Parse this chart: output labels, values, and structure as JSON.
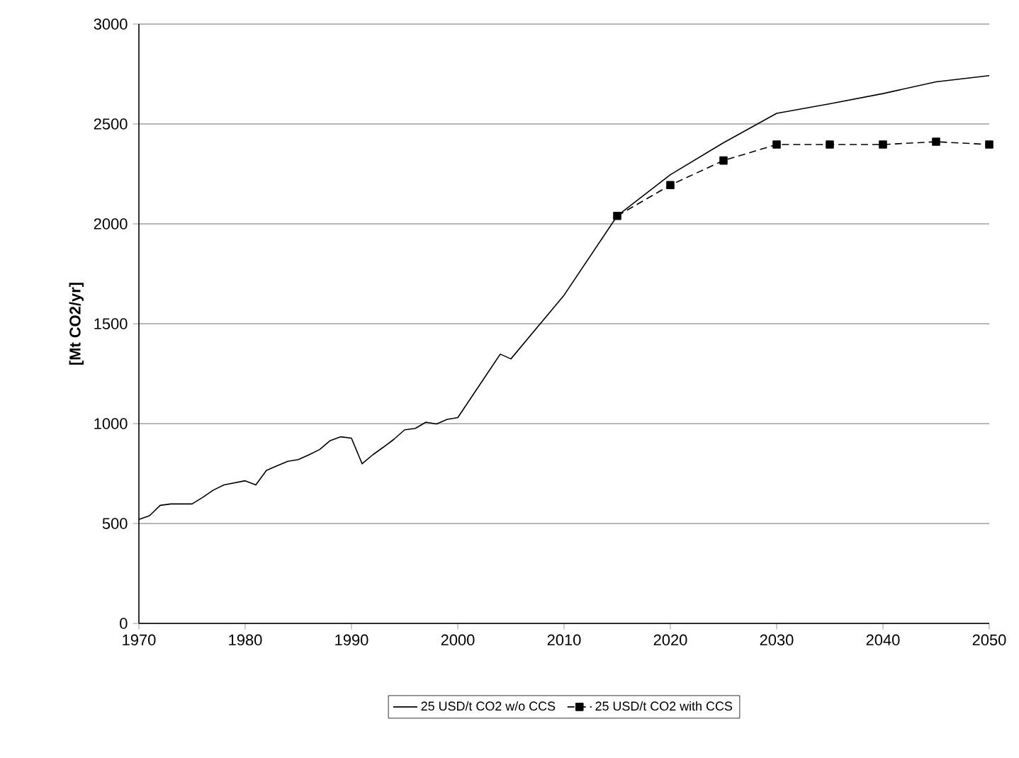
{
  "chart_data": {
    "type": "line",
    "ylabel": "[Mt CO2/yr]",
    "xlim": [
      1970,
      2050
    ],
    "ylim": [
      0,
      3000
    ],
    "xticks": [
      1970,
      1980,
      1990,
      2000,
      2010,
      2020,
      2030,
      2040,
      2050
    ],
    "yticks": [
      0,
      500,
      1000,
      1500,
      2000,
      2500,
      3000
    ],
    "grid": "y",
    "legend": "bottom",
    "series": [
      {
        "name": "25 USD/t CO2 w/o CCS",
        "color": "#000000",
        "marker": "none",
        "line_style": "solid",
        "x": [
          1970,
          1971,
          1972,
          1973,
          1975,
          1976,
          1977,
          1978,
          1980,
          1981,
          1982,
          1983,
          1984,
          1985,
          1986,
          1987,
          1988,
          1989,
          1990,
          1991,
          1992,
          1993,
          1994,
          1995,
          1996,
          1997,
          1998,
          1999,
          2000,
          2004,
          2005,
          2010,
          2015,
          2020,
          2025,
          2030,
          2035,
          2040,
          2045,
          2050
        ],
        "values": [
          520,
          539,
          591,
          598,
          598,
          631,
          667,
          693,
          714,
          693,
          766,
          789,
          811,
          820,
          844,
          870,
          915,
          934,
          927,
          799,
          844,
          882,
          922,
          969,
          976,
          1007,
          998,
          1021,
          1030,
          1348,
          1324,
          1643,
          2040,
          2246,
          2406,
          2553,
          2601,
          2652,
          2711,
          2742
        ]
      },
      {
        "name": "25 USD/t CO2 with CCS",
        "color": "#000000",
        "marker": "square",
        "line_style": "dashed",
        "x": [
          2015,
          2020,
          2025,
          2030,
          2035,
          2040,
          2045,
          2050
        ],
        "values": [
          2040,
          2194,
          2317,
          2397,
          2397,
          2397,
          2411,
          2397
        ]
      }
    ]
  }
}
